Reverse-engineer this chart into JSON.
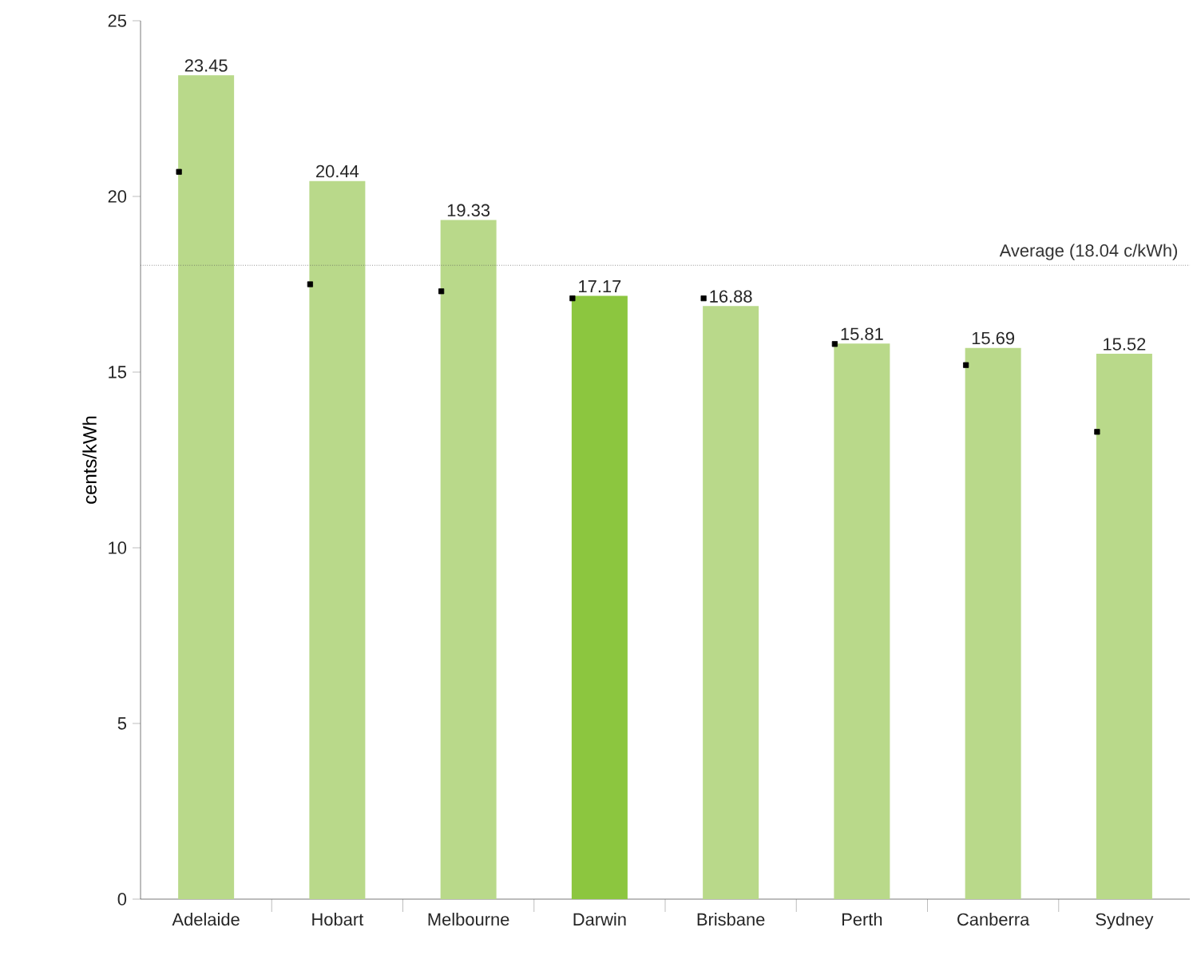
{
  "chart_data": {
    "type": "bar",
    "ylabel": "cents/kWh",
    "categories": [
      "Adelaide",
      "Hobart",
      "Melbourne",
      "Darwin",
      "Brisbane",
      "Perth",
      "Canberra",
      "Sydney"
    ],
    "series": [
      {
        "colors": [
          "#b9d98a",
          "#b9d98a",
          "#b9d98a",
          "#8cc63f",
          "#b9d98a",
          "#b9d98a",
          "#b9d98a",
          "#b9d98a"
        ],
        "values": [
          23.45,
          20.44,
          19.33,
          17.17,
          16.88,
          15.81,
          15.69,
          15.52
        ],
        "value_labels": [
          "23.45",
          "20.44",
          "19.33",
          "17.17",
          "16.88",
          "15.81",
          "15.69",
          "15.52"
        ]
      },
      {
        "type": "scatter",
        "x": [
          "Adelaide",
          "Hobart",
          "Melbourne",
          "Darwin",
          "Brisbane",
          "Perth",
          "Canberra",
          "Sydney"
        ],
        "color": "#000000",
        "marker": "square",
        "values": [
          20.7,
          17.5,
          17.3,
          17.1,
          17.1,
          15.8,
          15.2,
          13.3
        ]
      }
    ],
    "ylim": [
      0,
      25
    ],
    "yticks": [
      0,
      5,
      10,
      15,
      20,
      25
    ],
    "ref_lines": [
      {
        "axis": "y",
        "value": 18.04,
        "label": "Average (18.04 c/kWh)",
        "line_style": "dotted",
        "color": "#555555"
      }
    ]
  }
}
